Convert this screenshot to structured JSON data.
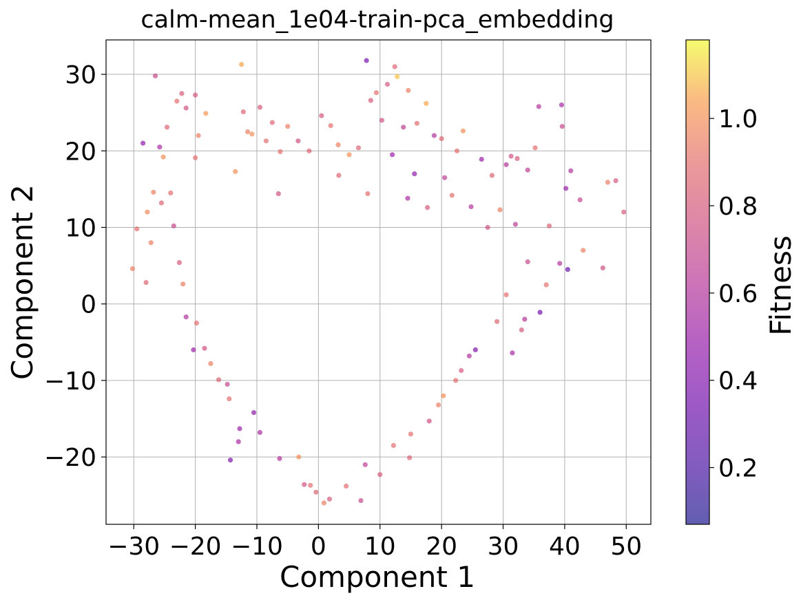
{
  "chart_data": {
    "type": "scatter",
    "title": "calm-mean_1e04-train-pca_embedding",
    "xlabel": "Component 1",
    "ylabel": "Component 2",
    "xlim": [
      -34.5,
      54
    ],
    "ylim": [
      -28.8,
      34.5
    ],
    "xticks": [
      -30,
      -20,
      -10,
      0,
      10,
      20,
      30,
      40,
      50
    ],
    "xtick_labels": [
      "−30",
      "−20",
      "−10",
      "0",
      "10",
      "20",
      "30",
      "40",
      "50"
    ],
    "yticks": [
      -20,
      -10,
      0,
      10,
      20,
      30
    ],
    "ytick_labels": [
      "−20",
      "−10",
      "0",
      "10",
      "20",
      "30"
    ],
    "grid": true,
    "colorbar": {
      "label": "Fitness",
      "colormap": "plasma",
      "range": [
        0.07,
        1.18
      ],
      "ticks": [
        0.2,
        0.4,
        0.6,
        0.8,
        1.0
      ],
      "tick_labels": [
        "0.2",
        "0.4",
        "0.6",
        "0.8",
        "1.0"
      ]
    },
    "marker_alpha": 0.65,
    "points": [
      [
        -30.2,
        4.6,
        0.95
      ],
      [
        -29.5,
        9.8,
        0.9
      ],
      [
        -27.8,
        12.0,
        0.98
      ],
      [
        -26.5,
        29.8,
        0.7
      ],
      [
        -25.8,
        20.5,
        0.55
      ],
      [
        -25.2,
        19.2,
        1.0
      ],
      [
        -24.6,
        23.1,
        0.85
      ],
      [
        -23.0,
        26.5,
        0.9
      ],
      [
        -22.2,
        27.5,
        0.8
      ],
      [
        -21.5,
        25.6,
        0.75
      ],
      [
        -20.0,
        27.3,
        0.8
      ],
      [
        -19.5,
        22.0,
        0.95
      ],
      [
        -18.3,
        24.9,
        1.02
      ],
      [
        -28.5,
        21.0,
        0.45
      ],
      [
        -24.0,
        14.5,
        0.9
      ],
      [
        -23.5,
        10.2,
        0.7
      ],
      [
        -22.6,
        5.4,
        0.8
      ],
      [
        -22.0,
        2.6,
        0.95
      ],
      [
        -21.5,
        -1.7,
        0.6
      ],
      [
        -20.3,
        -6.0,
        0.5
      ],
      [
        -19.8,
        -2.5,
        0.9
      ],
      [
        -18.5,
        -5.8,
        0.75
      ],
      [
        -17.5,
        -7.8,
        0.95
      ],
      [
        -16.2,
        -9.9,
        0.85
      ],
      [
        -14.8,
        -10.5,
        0.7
      ],
      [
        -14.5,
        -12.4,
        0.9
      ],
      [
        -14.3,
        -20.4,
        0.4
      ],
      [
        -13.0,
        -18.0,
        0.55
      ],
      [
        -12.8,
        -16.3,
        0.5
      ],
      [
        -12.5,
        31.3,
        1.05
      ],
      [
        -12.2,
        25.1,
        0.85
      ],
      [
        -11.5,
        22.5,
        0.95
      ],
      [
        -10.8,
        22.2,
        1.0
      ],
      [
        -9.5,
        25.7,
        0.8
      ],
      [
        -8.5,
        21.3,
        0.9
      ],
      [
        -7.5,
        23.7,
        0.85
      ],
      [
        -6.2,
        19.9,
        0.9
      ],
      [
        -5.0,
        23.2,
        0.95
      ],
      [
        -3.3,
        21.3,
        0.75
      ],
      [
        -1.5,
        20.0,
        0.85
      ],
      [
        0.5,
        24.6,
        0.8
      ],
      [
        2.0,
        23.3,
        0.9
      ],
      [
        3.2,
        20.8,
        0.95
      ],
      [
        5.0,
        19.5,
        1.0
      ],
      [
        6.5,
        20.4,
        0.85
      ],
      [
        7.8,
        31.8,
        0.35
      ],
      [
        8.5,
        26.6,
        0.8
      ],
      [
        9.4,
        27.6,
        0.9
      ],
      [
        10.3,
        24.0,
        0.75
      ],
      [
        11.2,
        28.7,
        0.8
      ],
      [
        12.4,
        31.0,
        0.85
      ],
      [
        12.8,
        29.7,
        1.1
      ],
      [
        13.8,
        23.1,
        0.65
      ],
      [
        14.6,
        27.9,
        0.95
      ],
      [
        16.0,
        23.6,
        0.9
      ],
      [
        17.5,
        26.2,
        1.05
      ],
      [
        18.8,
        22.0,
        0.6
      ],
      [
        20.0,
        21.6,
        0.85
      ],
      [
        22.5,
        20.0,
        0.9
      ],
      [
        23.5,
        22.6,
        1.0
      ],
      [
        26.5,
        18.9,
        0.5
      ],
      [
        28.2,
        16.8,
        0.85
      ],
      [
        30.5,
        18.2,
        0.6
      ],
      [
        31.3,
        19.3,
        0.75
      ],
      [
        32.3,
        19.0,
        0.8
      ],
      [
        34.0,
        17.5,
        0.65
      ],
      [
        35.2,
        20.4,
        0.9
      ],
      [
        35.8,
        25.8,
        0.6
      ],
      [
        39.5,
        26.0,
        0.55
      ],
      [
        39.6,
        23.2,
        0.7
      ],
      [
        40.2,
        15.1,
        0.5
      ],
      [
        41.0,
        17.4,
        0.6
      ],
      [
        42.5,
        13.6,
        0.7
      ],
      [
        47.0,
        15.9,
        0.95
      ],
      [
        48.3,
        16.1,
        0.8
      ],
      [
        49.6,
        12.0,
        0.8
      ],
      [
        37.5,
        10.2,
        0.85
      ],
      [
        39.2,
        5.3,
        0.6
      ],
      [
        40.5,
        4.5,
        0.3
      ],
      [
        43.0,
        7.0,
        0.95
      ],
      [
        46.2,
        4.7,
        0.75
      ],
      [
        36.0,
        -1.1,
        0.35
      ],
      [
        33.5,
        -2.0,
        0.6
      ],
      [
        33.0,
        -3.4,
        0.8
      ],
      [
        31.5,
        -6.4,
        0.55
      ],
      [
        30.5,
        1.2,
        0.9
      ],
      [
        29.0,
        -2.3,
        0.85
      ],
      [
        25.5,
        -6.0,
        0.4
      ],
      [
        24.5,
        -6.8,
        0.6
      ],
      [
        23.2,
        -8.7,
        0.8
      ],
      [
        22.3,
        -10.0,
        0.9
      ],
      [
        20.3,
        -12.0,
        1.0
      ],
      [
        19.5,
        -13.2,
        0.95
      ],
      [
        18.0,
        -15.3,
        0.75
      ],
      [
        15.0,
        -17.0,
        0.9
      ],
      [
        14.8,
        -20.1,
        0.85
      ],
      [
        12.2,
        -18.5,
        0.9
      ],
      [
        10.0,
        -22.3,
        0.8
      ],
      [
        7.6,
        -21.0,
        0.65
      ],
      [
        6.9,
        -25.7,
        0.7
      ],
      [
        4.5,
        -23.8,
        0.9
      ],
      [
        1.8,
        -25.5,
        0.8
      ],
      [
        0.9,
        -26.0,
        0.95
      ],
      [
        -0.4,
        -24.6,
        0.85
      ],
      [
        -1.3,
        -23.7,
        0.9
      ],
      [
        -2.3,
        -23.6,
        0.75
      ],
      [
        -3.2,
        -20.0,
        1.0
      ],
      [
        -6.3,
        -20.2,
        0.6
      ],
      [
        -9.5,
        -16.8,
        0.55
      ],
      [
        -10.5,
        -14.2,
        0.45
      ],
      [
        37.0,
        2.5,
        0.9
      ],
      [
        34.0,
        5.5,
        0.7
      ],
      [
        32.0,
        10.4,
        0.65
      ],
      [
        29.5,
        12.3,
        0.95
      ],
      [
        -26.8,
        14.6,
        0.95
      ],
      [
        -25.5,
        13.2,
        0.85
      ],
      [
        -20.0,
        19.1,
        0.9
      ],
      [
        -13.5,
        17.3,
        1.0
      ],
      [
        -6.5,
        14.4,
        0.75
      ],
      [
        3.3,
        16.8,
        0.85
      ],
      [
        8.0,
        14.4,
        0.9
      ],
      [
        14.5,
        13.8,
        0.55
      ],
      [
        17.7,
        12.6,
        0.8
      ],
      [
        21.7,
        14.2,
        0.9
      ],
      [
        24.8,
        12.7,
        0.6
      ],
      [
        27.5,
        10.0,
        0.75
      ],
      [
        12.0,
        19.5,
        0.5
      ],
      [
        15.6,
        17.0,
        0.45
      ],
      [
        20.5,
        16.5,
        0.65
      ],
      [
        -28.0,
        2.8,
        0.85
      ],
      [
        -27.2,
        8.0,
        0.95
      ]
    ]
  }
}
